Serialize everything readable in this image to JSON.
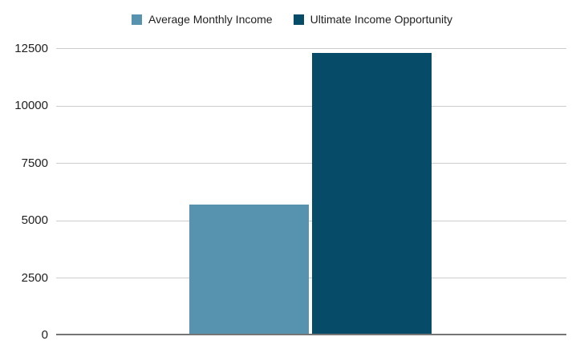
{
  "chart_data": {
    "type": "bar",
    "title": "",
    "xlabel": "",
    "ylabel": "",
    "categories": [
      ""
    ],
    "series": [
      {
        "name": "Average Monthly Income",
        "color": "#5792ae",
        "values": [
          5680
        ]
      },
      {
        "name": "Ultimate Income Opportunity",
        "color": "#064b68",
        "values": [
          12300
        ]
      }
    ],
    "ylim": [
      0,
      12500
    ],
    "yticks": [
      0,
      2500,
      5000,
      7500,
      10000,
      12500
    ],
    "grid": true,
    "legend_position": "top",
    "background_color": "#ffffff",
    "gridline_color": "#cccccc",
    "baseline_color": "#757575"
  }
}
